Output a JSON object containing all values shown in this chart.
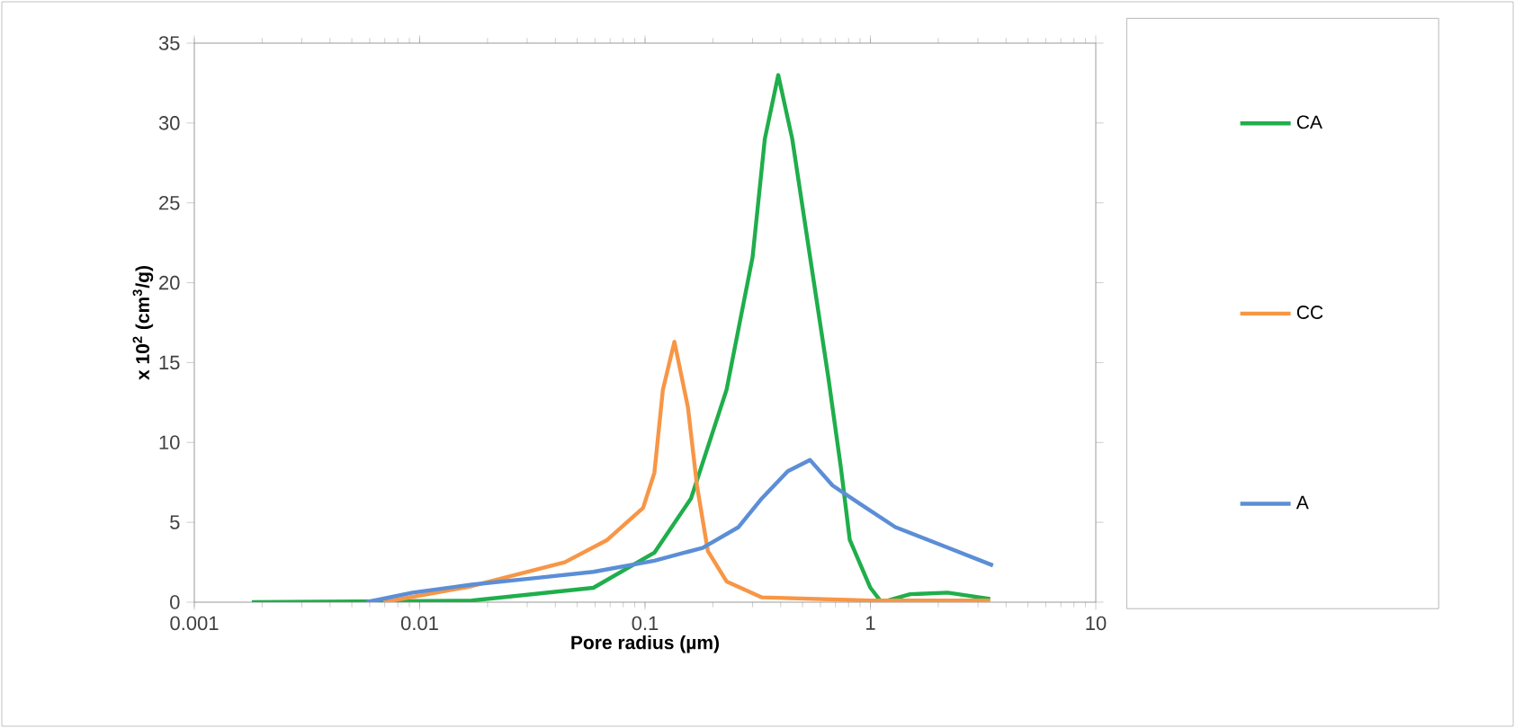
{
  "chart_data": {
    "type": "line",
    "xlabel": "Pore radius (µm)",
    "ylabel": "x 10$^{2}$ (cm$^{3}$/g)",
    "log": "x",
    "xlim": [
      0.001,
      10
    ],
    "ylim": [
      0,
      35
    ],
    "xticks": [
      0.001,
      0.01,
      0.1,
      1,
      10
    ],
    "yticks": [
      0,
      5,
      10,
      15,
      20,
      25,
      30,
      35
    ],
    "legend": "right",
    "grid": false,
    "series": [
      {
        "name": "CA",
        "color": "#1fae4b",
        "x": [
          0.0018,
          0.017,
          0.059,
          0.11,
          0.16,
          0.23,
          0.3,
          0.34,
          0.39,
          0.45,
          0.54,
          0.65,
          0.74,
          0.81,
          1.0,
          1.12,
          1.5,
          2.2,
          3.4
        ],
        "values": [
          0,
          0.1,
          0.9,
          3.1,
          6.5,
          13.3,
          21.6,
          29,
          33.0,
          29,
          21.6,
          14.1,
          8.4,
          3.9,
          0.9,
          0,
          0.5,
          0.6,
          0.2
        ]
      },
      {
        "name": "CC",
        "color": "#f79646",
        "x": [
          0.0069,
          0.017,
          0.044,
          0.068,
          0.098,
          0.11,
          0.12,
          0.135,
          0.155,
          0.17,
          0.19,
          0.23,
          0.33,
          1.0,
          3.4
        ],
        "values": [
          0,
          1.0,
          2.5,
          3.9,
          5.9,
          8.1,
          13.3,
          16.3,
          12.2,
          7.3,
          3.2,
          1.3,
          0.3,
          0.1,
          0.1
        ]
      },
      {
        "name": "A",
        "color": "#5b8ed6",
        "x": [
          0.0058,
          0.0093,
          0.017,
          0.032,
          0.059,
          0.11,
          0.18,
          0.26,
          0.33,
          0.43,
          0.54,
          0.68,
          0.89,
          1.29,
          2.04,
          3.5
        ],
        "values": [
          0,
          0.6,
          1.1,
          1.5,
          1.9,
          2.6,
          3.4,
          4.7,
          6.5,
          8.2,
          8.9,
          7.3,
          6.2,
          4.7,
          3.6,
          2.3
        ]
      }
    ]
  }
}
